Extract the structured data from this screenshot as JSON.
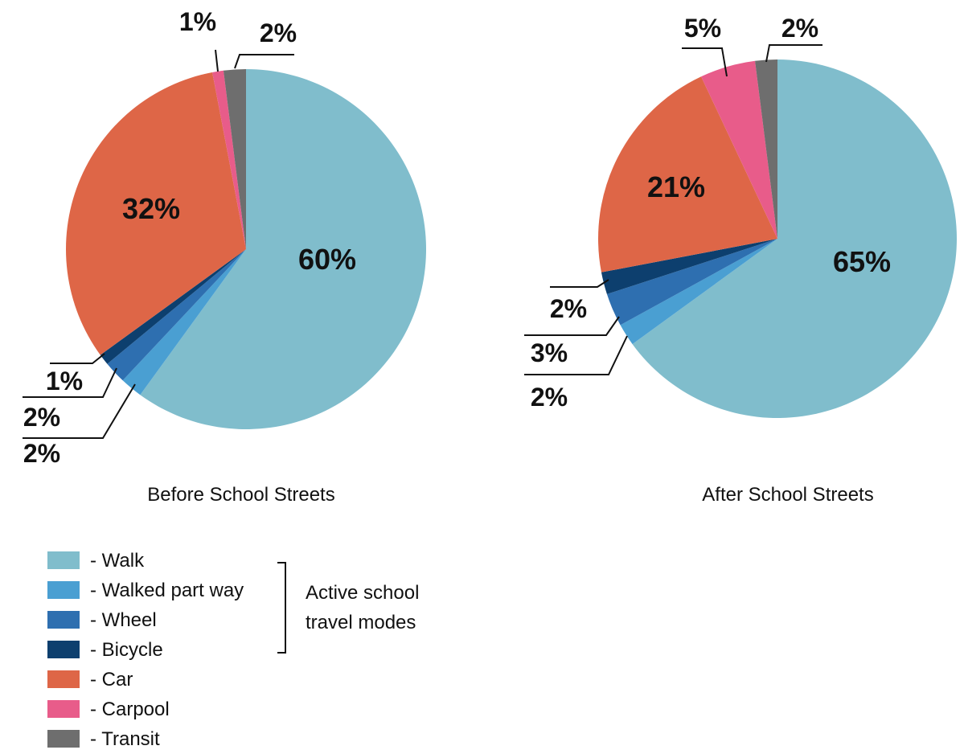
{
  "chart_data": [
    {
      "type": "pie",
      "caption": "Before School Streets",
      "slices": [
        {
          "category": "Walk",
          "value": 60,
          "label": "60%"
        },
        {
          "category": "Walked part way",
          "value": 2,
          "label": "2%"
        },
        {
          "category": "Wheel",
          "value": 2,
          "label": "2%"
        },
        {
          "category": "Bicycle",
          "value": 1,
          "label": "1%"
        },
        {
          "category": "Car",
          "value": 32,
          "label": "32%"
        },
        {
          "category": "Carpool",
          "value": 1,
          "label": "1%"
        },
        {
          "category": "Transit",
          "value": 2,
          "label": "2%"
        }
      ]
    },
    {
      "type": "pie",
      "caption": "After School Streets",
      "slices": [
        {
          "category": "Walk",
          "value": 65,
          "label": "65%"
        },
        {
          "category": "Walked part way",
          "value": 2,
          "label": "2%"
        },
        {
          "category": "Wheel",
          "value": 3,
          "label": "3%"
        },
        {
          "category": "Bicycle",
          "value": 2,
          "label": "2%"
        },
        {
          "category": "Car",
          "value": 21,
          "label": "21%"
        },
        {
          "category": "Carpool",
          "value": 5,
          "label": "5%"
        },
        {
          "category": "Transit",
          "value": 2,
          "label": "2%"
        }
      ]
    }
  ],
  "legend": {
    "items": [
      {
        "category": "Walk",
        "label": "- Walk",
        "color": "#80BDCC"
      },
      {
        "category": "Walked part way",
        "label": "- Walked part way",
        "color": "#4A9FD2"
      },
      {
        "category": "Wheel",
        "label": "- Wheel",
        "color": "#2E6FB0"
      },
      {
        "category": "Bicycle",
        "label": "- Bicycle",
        "color": "#0D3F6E"
      },
      {
        "category": "Car",
        "label": "- Car",
        "color": "#DE6647"
      },
      {
        "category": "Carpool",
        "label": "- Carpool",
        "color": "#E85C8A"
      },
      {
        "category": "Transit",
        "label": "- Transit",
        "color": "#6E6E6E"
      }
    ],
    "group_label_line1": "Active school",
    "group_label_line2": "travel modes"
  }
}
